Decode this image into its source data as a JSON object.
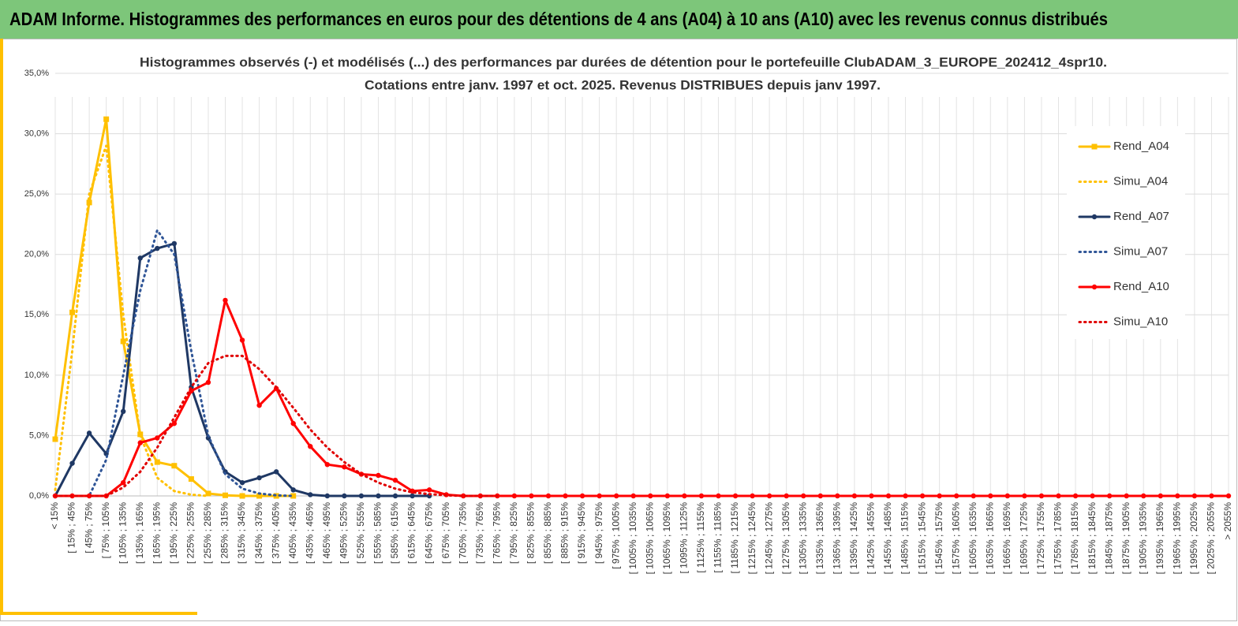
{
  "header": {
    "title": "ADAM Informe. Histogrammes des performances en euros pour des détentions de 4 ans (A04) à 10 ans (A10) avec les revenus connus distribués"
  },
  "chart_data": {
    "type": "line",
    "title": "Histogrammes observés (-) et modélisés (...) des performances par durées de détention pour le portefeuille ClubADAM_3_EUROPE_202412_4spr10.",
    "subtitle": "Cotations entre janv. 1997 et oct. 2025. Revenus DISTRIBUES depuis janv 1997.",
    "categories": [
      "< 15%",
      "[ 15% ; 45%",
      "[ 45% ; 75%",
      "[ 75% ; 105%",
      "[ 105% ; 135%",
      "[ 135% ; 165%",
      "[ 165% ; 195%",
      "[ 195% ; 225%",
      "[ 225% ; 255%",
      "[ 255% ; 285%",
      "[ 285% ; 315%",
      "[ 315% ; 345%",
      "[ 345% ; 375%",
      "[ 375% ; 405%",
      "[ 405% ; 435%",
      "[ 435% ; 465%",
      "[ 465% ; 495%",
      "[ 495% ; 525%",
      "[ 525% ; 555%",
      "[ 555% ; 585%",
      "[ 585% ; 615%",
      "[ 615% ; 645%",
      "[ 645% ; 675%",
      "[ 675% ; 705%",
      "[ 705% ; 735%",
      "[ 735% ; 765%",
      "[ 765% ; 795%",
      "[ 795% ; 825%",
      "[ 825% ; 855%",
      "[ 855% ; 885%",
      "[ 885% ; 915%",
      "[ 915% ; 945%",
      "[ 945% ; 975%",
      "[ 975% ; 1005%",
      "[ 1005% ; 1035%",
      "[ 1035% ; 1065%",
      "[ 1065% ; 1095%",
      "[ 1095% ; 1125%",
      "[ 1125% ; 1155%",
      "[ 1155% ; 1185%",
      "[ 1185% ; 1215%",
      "[ 1215% ; 1245%",
      "[ 1245% ; 1275%",
      "[ 1275% ; 1305%",
      "[ 1305% ; 1335%",
      "[ 1335% ; 1365%",
      "[ 1365% ; 1395%",
      "[ 1395% ; 1425%",
      "[ 1425% ; 1455%",
      "[ 1455% ; 1485%",
      "[ 1485% ; 1515%",
      "[ 1515% ; 1545%",
      "[ 1545% ; 1575%",
      "[ 1575% ; 1605%",
      "[ 1605% ; 1635%",
      "[ 1635% ; 1665%",
      "[ 1665% ; 1695%",
      "[ 1695% ; 1725%",
      "[ 1725% ; 1755%",
      "[ 1755% ; 1785%",
      "[ 1785% ; 1815%",
      "[ 1815% ; 1845%",
      "[ 1845% ; 1875%",
      "[ 1875% ; 1905%",
      "[ 1905% ; 1935%",
      "[ 1935% ; 1965%",
      "[ 1965% ; 1995%",
      "[ 1995% ; 2025%",
      "[ 2025% ; 2055%",
      "> 2055%"
    ],
    "series": [
      {
        "name": "Rend_A04",
        "color": "#ffc000",
        "marker": "square",
        "dash": "solid",
        "values": [
          4.7,
          15.2,
          24.3,
          31.2,
          12.8,
          5.1,
          2.8,
          2.5,
          1.4,
          0.2,
          0.05,
          0,
          0,
          0,
          0,
          null,
          null,
          null,
          null,
          null,
          null,
          null,
          null,
          null,
          null,
          null,
          null,
          null,
          null,
          null,
          null,
          null,
          null,
          null,
          null,
          null,
          null,
          null,
          null,
          null,
          null,
          null,
          null,
          null,
          null,
          null,
          null,
          null,
          null,
          null,
          null,
          null,
          null,
          null,
          null,
          null,
          null,
          null,
          null,
          null,
          null,
          null,
          null,
          null,
          null,
          null,
          null,
          null,
          null,
          null
        ]
      },
      {
        "name": "Simu_A04",
        "color": "#ffc000",
        "marker": "none",
        "dash": "dotted",
        "values": [
          0.5,
          12,
          25,
          29,
          15,
          5,
          1.5,
          0.4,
          0.1,
          0,
          null,
          null,
          null,
          null,
          null,
          null,
          null,
          null,
          null,
          null,
          null,
          null,
          null,
          null,
          null,
          null,
          null,
          null,
          null,
          null,
          null,
          null,
          null,
          null,
          null,
          null,
          null,
          null,
          null,
          null,
          null,
          null,
          null,
          null,
          null,
          null,
          null,
          null,
          null,
          null,
          null,
          null,
          null,
          null,
          null,
          null,
          null,
          null,
          null,
          null,
          null,
          null,
          null,
          null,
          null,
          null,
          null,
          null,
          null,
          null
        ]
      },
      {
        "name": "Rend_A07",
        "color": "#1f3864",
        "marker": "circle",
        "dash": "solid",
        "values": [
          0,
          2.7,
          5.2,
          3.5,
          7.0,
          19.7,
          20.5,
          20.9,
          9.0,
          4.8,
          2.0,
          1.1,
          1.5,
          2.0,
          0.5,
          0.1,
          0,
          0,
          0,
          0,
          0,
          0,
          0,
          null,
          null,
          null,
          null,
          null,
          null,
          null,
          null,
          null,
          null,
          null,
          null,
          null,
          null,
          null,
          null,
          null,
          null,
          null,
          null,
          null,
          null,
          null,
          null,
          null,
          null,
          null,
          null,
          null,
          null,
          null,
          null,
          null,
          null,
          null,
          null,
          null,
          null,
          null,
          null,
          null,
          null,
          null,
          null,
          null,
          null,
          null
        ]
      },
      {
        "name": "Simu_A07",
        "color": "#2f5597",
        "marker": "none",
        "dash": "dotted",
        "values": [
          0,
          0,
          0,
          3,
          10,
          17,
          22,
          20,
          12,
          5,
          1.8,
          0.6,
          0.2,
          0.05,
          0,
          null,
          null,
          null,
          null,
          null,
          null,
          null,
          null,
          null,
          null,
          null,
          null,
          null,
          null,
          null,
          null,
          null,
          null,
          null,
          null,
          null,
          null,
          null,
          null,
          null,
          null,
          null,
          null,
          null,
          null,
          null,
          null,
          null,
          null,
          null,
          null,
          null,
          null,
          null,
          null,
          null,
          null,
          null,
          null,
          null,
          null,
          null,
          null,
          null,
          null,
          null,
          null,
          null,
          null,
          null
        ]
      },
      {
        "name": "Rend_A10",
        "color": "#ff0000",
        "marker": "circle",
        "dash": "solid",
        "values": [
          0,
          0,
          0,
          0,
          1.1,
          4.4,
          4.8,
          6.0,
          8.7,
          9.4,
          16.2,
          12.9,
          7.5,
          8.9,
          6.0,
          4.1,
          2.6,
          2.4,
          1.8,
          1.7,
          1.3,
          0.4,
          0.5,
          0.1,
          0,
          0,
          0,
          0,
          0,
          0,
          0,
          0,
          0,
          0,
          0,
          0,
          0,
          0,
          0,
          0,
          0,
          0,
          0,
          0,
          0,
          0,
          0,
          0,
          0,
          0,
          0,
          0,
          0,
          0,
          0,
          0,
          0,
          0,
          0,
          0,
          0,
          0,
          0,
          0,
          0,
          0,
          0,
          0,
          0,
          0
        ]
      },
      {
        "name": "Simu_A10",
        "color": "#e00000",
        "marker": "none",
        "dash": "dotted",
        "values": [
          0,
          0,
          0,
          0,
          0.7,
          2,
          4,
          6.5,
          9,
          11,
          11.6,
          11.6,
          10.5,
          9,
          7.3,
          5.5,
          4,
          2.8,
          1.8,
          1.1,
          0.6,
          0.3,
          0.15,
          0.05,
          0,
          0,
          0,
          null,
          null,
          null,
          null,
          null,
          null,
          null,
          null,
          null,
          null,
          null,
          null,
          null,
          null,
          null,
          null,
          null,
          null,
          null,
          null,
          null,
          null,
          null,
          null,
          null,
          null,
          null,
          null,
          null,
          null,
          null,
          null,
          null,
          null,
          null,
          null,
          null,
          null,
          null,
          null,
          null,
          null,
          null
        ]
      }
    ],
    "ylim": [
      0,
      35
    ],
    "yticks": [
      {
        "value": 0,
        "label": "0,0%"
      },
      {
        "value": 5,
        "label": "5,0%"
      },
      {
        "value": 10,
        "label": "10,0%"
      },
      {
        "value": 15,
        "label": "15,0%"
      },
      {
        "value": 20,
        "label": "20,0%"
      },
      {
        "value": 25,
        "label": "25,0%"
      },
      {
        "value": 30,
        "label": "30,0%"
      },
      {
        "value": 35,
        "label": "35,0%"
      }
    ],
    "grid": true,
    "legend": "right"
  }
}
